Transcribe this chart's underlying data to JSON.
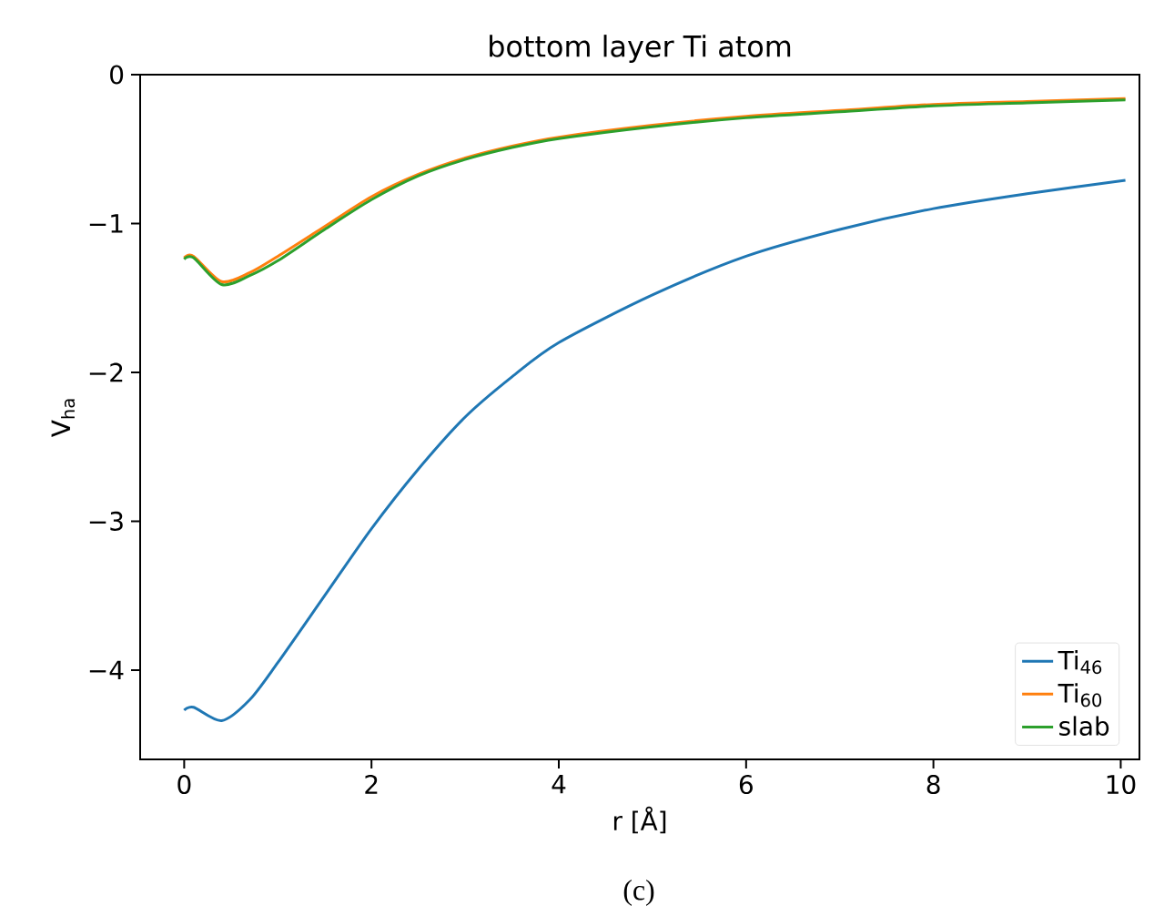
{
  "chart_data": {
    "type": "line",
    "title": "bottom layer Ti atom",
    "xlabel": "r [Å]",
    "ylabel": "V$_{ha}$",
    "xlim": [
      -0.47,
      10.2
    ],
    "ylim": [
      -4.6,
      0
    ],
    "xticks": [
      0,
      2,
      4,
      6,
      8,
      10
    ],
    "yticks": [
      {
        "value": -4,
        "label": "−4"
      },
      {
        "value": -3,
        "label": "−3"
      },
      {
        "value": -2,
        "label": "−2"
      },
      {
        "value": -1,
        "label": "−1"
      },
      0
    ],
    "x": [
      0,
      0.1,
      0.4,
      0.7,
      1,
      1.5,
      2,
      2.5,
      3,
      3.5,
      4,
      5,
      6,
      7,
      8,
      9,
      10.05
    ],
    "series": [
      {
        "name": "Ti$_{46}$",
        "color": "#1f77b4",
        "values": [
          -4.27,
          -4.25,
          -4.34,
          -4.2,
          -3.95,
          -3.5,
          -3.05,
          -2.65,
          -2.3,
          -2.03,
          -1.8,
          -1.48,
          -1.22,
          -1.04,
          -0.9,
          -0.8,
          -0.71
        ]
      },
      {
        "name": "Ti$_{60}$",
        "color": "#ff7f0e",
        "values": [
          -1.23,
          -1.22,
          -1.39,
          -1.33,
          -1.22,
          -1.02,
          -0.82,
          -0.67,
          -0.56,
          -0.48,
          -0.42,
          -0.34,
          -0.28,
          -0.24,
          -0.2,
          -0.18,
          -0.16
        ]
      },
      {
        "name": "slab",
        "color": "#2ca02c",
        "values": [
          -1.24,
          -1.23,
          -1.41,
          -1.35,
          -1.25,
          -1.04,
          -0.84,
          -0.68,
          -0.57,
          -0.49,
          -0.43,
          -0.35,
          -0.29,
          -0.25,
          -0.21,
          -0.19,
          -0.17
        ]
      }
    ],
    "legend": "bottom right",
    "grid": false,
    "marker": "none",
    "line_style": "solid",
    "annotations": [
      "(c)"
    ]
  }
}
